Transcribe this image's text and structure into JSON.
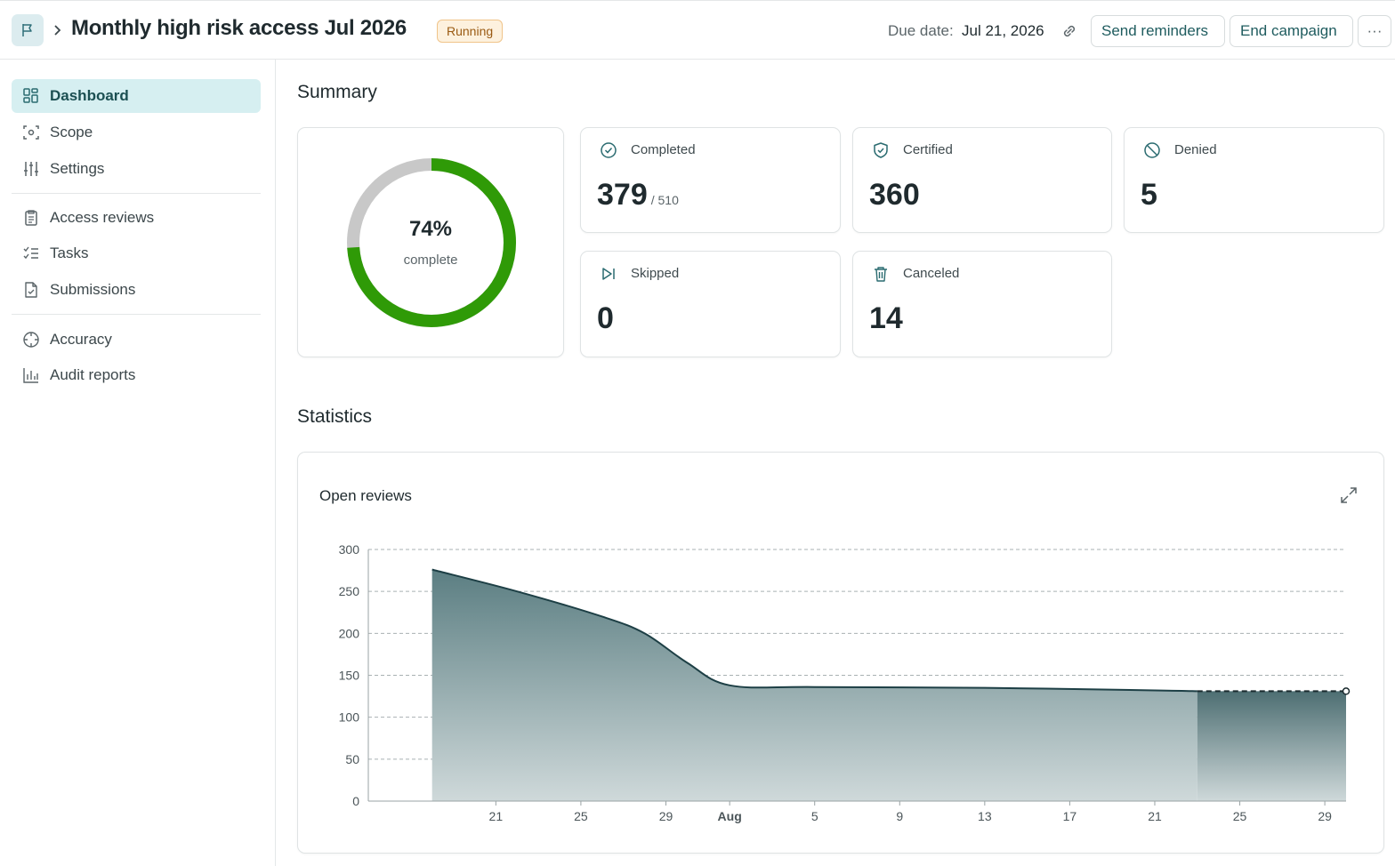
{
  "header": {
    "title": "Monthly high risk access Jul 2026",
    "status": "Running",
    "due_label": "Due date:",
    "due_value": "Jul 21, 2026",
    "send_reminders": "Send reminders",
    "end_campaign": "End campaign",
    "more": "···"
  },
  "sidebar": {
    "items": [
      {
        "label": "Dashboard",
        "icon": "dashboard-icon",
        "active": true
      },
      {
        "label": "Scope",
        "icon": "scope-icon"
      },
      {
        "label": "Settings",
        "icon": "sliders-icon"
      },
      {
        "label": "Access reviews",
        "icon": "clipboard-icon"
      },
      {
        "label": "Tasks",
        "icon": "checklist-icon"
      },
      {
        "label": "Submissions",
        "icon": "document-check-icon"
      },
      {
        "label": "Accuracy",
        "icon": "target-icon"
      },
      {
        "label": "Audit reports",
        "icon": "bar-chart-icon"
      }
    ]
  },
  "summary": {
    "title": "Summary",
    "donut": {
      "percent": "74%",
      "label": "complete",
      "fraction": 0.74,
      "color_done": "#2f9a07",
      "color_rest": "#c8c8c8"
    },
    "completed": {
      "label": "Completed",
      "value": "379",
      "total": "/ 510"
    },
    "certified": {
      "label": "Certified",
      "value": "360"
    },
    "denied": {
      "label": "Denied",
      "value": "5"
    },
    "skipped": {
      "label": "Skipped",
      "value": "0"
    },
    "canceled": {
      "label": "Canceled",
      "value": "14"
    }
  },
  "statistics": {
    "title": "Statistics"
  },
  "chart_data": {
    "type": "area",
    "title": "Open reviews",
    "xlabel": "",
    "ylabel": "",
    "ylim": [
      0,
      300
    ],
    "yticks": [
      0,
      50,
      100,
      150,
      200,
      250,
      300
    ],
    "xlim": [
      "2026-07-15",
      "2026-07-30"
    ],
    "xticks": [
      {
        "date": "2026-07-21",
        "label": "21"
      },
      {
        "date": "2026-07-25",
        "label": "25"
      },
      {
        "date": "2026-07-29",
        "label": "29"
      },
      {
        "date": "2026-08-01",
        "label": "Aug",
        "bold": true
      },
      {
        "date": "2026-08-05",
        "label": "5"
      },
      {
        "date": "2026-08-09",
        "label": "9"
      },
      {
        "date": "2026-08-13",
        "label": "13"
      },
      {
        "date": "2026-08-17",
        "label": "17"
      },
      {
        "date": "2026-08-21",
        "label": "21"
      },
      {
        "date": "2026-08-25",
        "label": "25"
      },
      {
        "date": "2026-08-29",
        "label": "29"
      }
    ],
    "series": [
      {
        "points": [
          {
            "date": "2026-07-18",
            "y": 276
          },
          {
            "date": "2026-07-22",
            "y": 250
          },
          {
            "date": "2026-07-26",
            "y": 220
          },
          {
            "date": "2026-07-28",
            "y": 200
          },
          {
            "date": "2026-07-30",
            "y": 165
          },
          {
            "date": "2026-08-01",
            "y": 138
          },
          {
            "date": "2026-08-05",
            "y": 136
          },
          {
            "date": "2026-08-13",
            "y": 135
          },
          {
            "date": "2026-08-21",
            "y": 132
          },
          {
            "date": "2026-08-23",
            "y": 131
          }
        ],
        "projected": [
          {
            "date": "2026-08-23",
            "y": 131
          },
          {
            "date": "2026-08-30",
            "y": 131
          }
        ]
      }
    ],
    "grid": true,
    "legend": "none",
    "colors": {
      "line": "#1d3f45",
      "fill_top": "#5b7e82",
      "fill_bottom": "#cfd9da",
      "projected_top": "#4d6e72",
      "grid": "#a9b1b3"
    }
  }
}
